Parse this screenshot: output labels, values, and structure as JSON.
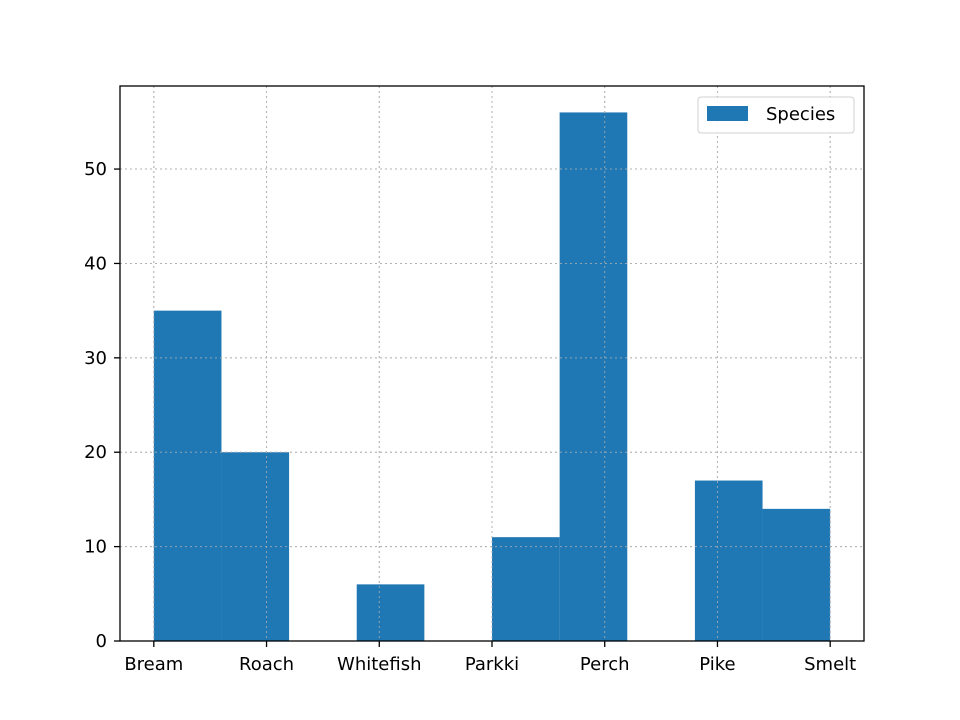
{
  "chart_data": {
    "type": "bar",
    "title": "",
    "xlabel": "",
    "ylabel": "",
    "categories": [
      "Bream",
      "Roach",
      "Whitefish",
      "Parkki",
      "Perch",
      "Pike",
      "Smelt"
    ],
    "series": [
      {
        "name": "Species",
        "color": "#1f77b4",
        "bins": [
          {
            "start": 0.0,
            "end": 0.6,
            "value": 35
          },
          {
            "start": 0.6,
            "end": 1.2,
            "value": 20
          },
          {
            "start": 1.2,
            "end": 1.8,
            "value": 0
          },
          {
            "start": 1.8,
            "end": 2.4,
            "value": 6
          },
          {
            "start": 2.4,
            "end": 3.0,
            "value": 0
          },
          {
            "start": 3.0,
            "end": 3.6,
            "value": 11
          },
          {
            "start": 3.6,
            "end": 4.2,
            "value": 56
          },
          {
            "start": 4.2,
            "end": 4.8,
            "value": 0
          },
          {
            "start": 4.8,
            "end": 5.4,
            "value": 17
          },
          {
            "start": 5.4,
            "end": 6.0,
            "value": 14
          }
        ]
      }
    ],
    "xlim": [
      -0.3,
      6.3
    ],
    "ylim": [
      0,
      58.8
    ],
    "yticks": [
      0,
      10,
      20,
      30,
      40,
      50
    ],
    "grid": true,
    "legend_position": "top-right"
  }
}
